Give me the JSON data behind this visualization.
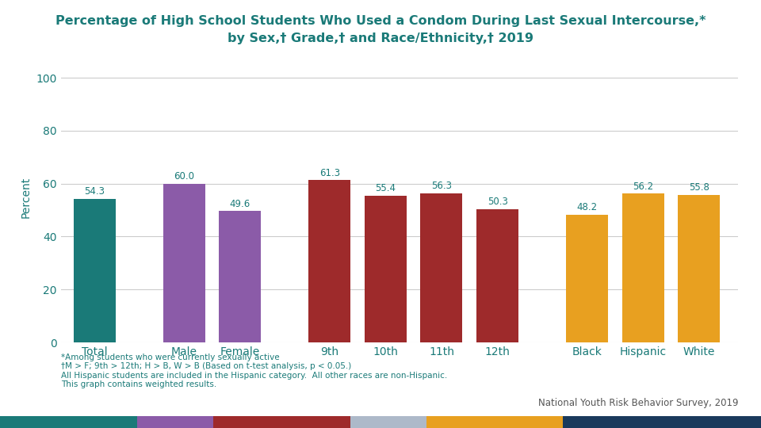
{
  "title_line1": "Percentage of High School Students Who Used a Condom During Last Sexual Intercourse,*",
  "title_line2": "by Sex,† Grade,† and Race/Ethnicity,† 2019",
  "categories": [
    "Total",
    "Male",
    "Female",
    "9th",
    "10th",
    "11th",
    "12th",
    "Black",
    "Hispanic",
    "White"
  ],
  "values": [
    54.3,
    60.0,
    49.6,
    61.3,
    55.4,
    56.3,
    50.3,
    48.2,
    56.2,
    55.8
  ],
  "bar_colors": [
    "#1a7a78",
    "#8b5ba8",
    "#8b5ba8",
    "#9e2a2b",
    "#9e2a2b",
    "#9e2a2b",
    "#9e2a2b",
    "#e8a020",
    "#e8a020",
    "#e8a020"
  ],
  "ylabel": "Percent",
  "ylim": [
    0,
    110
  ],
  "yticks": [
    0,
    20,
    40,
    60,
    80,
    100
  ],
  "title_color": "#1a7a78",
  "label_color": "#1a7a78",
  "tick_color": "#1a7a78",
  "grid_color": "#cccccc",
  "footnote_line1": "*Among students who were currently sexually active",
  "footnote_line2": "†M > F; 9th > 12th; H > B, W > B (Based on t-test analysis, p < 0.05.)",
  "footnote_line3": "All Hispanic students are included in the Hispanic category.  All other races are non-Hispanic.",
  "footnote_line4": "This graph contains weighted results.",
  "source": "National Youth Risk Behavior Survey, 2019",
  "background_color": "#ffffff",
  "bar_width": 0.75,
  "x_positions": [
    0,
    1.6,
    2.6,
    4.2,
    5.2,
    6.2,
    7.2,
    8.8,
    9.8,
    10.8
  ],
  "x_lim": [
    -0.6,
    11.5
  ],
  "footer_bar_colors": [
    "#1a7a78",
    "#8b5ba8",
    "#9e2a2b",
    "#adb9c9",
    "#e8a020",
    "#1a3a5c"
  ],
  "footer_bar_widths": [
    0.18,
    0.1,
    0.18,
    0.1,
    0.18,
    0.26
  ]
}
